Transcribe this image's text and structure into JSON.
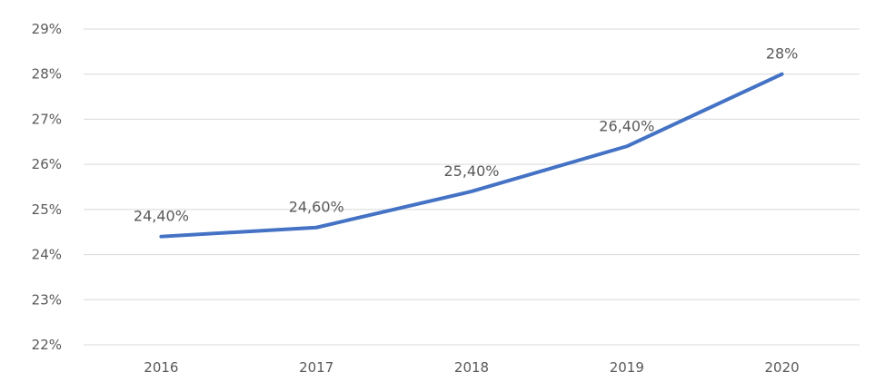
{
  "chart_data": {
    "type": "line",
    "title": "",
    "xlabel": "",
    "ylabel": "",
    "categories": [
      "2016",
      "2017",
      "2018",
      "2019",
      "2020"
    ],
    "series": [
      {
        "values": [
          24.4,
          24.6,
          25.4,
          26.4,
          28.0
        ],
        "data_labels": [
          "24,40%",
          "24,60%",
          "25,40%",
          "26,40%",
          "28%"
        ],
        "color": "#4472C4"
      }
    ],
    "ylim": [
      22,
      29
    ],
    "y_ticks": [
      22,
      23,
      24,
      25,
      26,
      27,
      28,
      29
    ],
    "y_tick_labels": [
      "22%",
      "23%",
      "24%",
      "25%",
      "26%",
      "27%",
      "28%",
      "29%"
    ],
    "grid": true,
    "legend": "none",
    "gridline_color": "#d9d9d9",
    "text_color": "#595959"
  }
}
